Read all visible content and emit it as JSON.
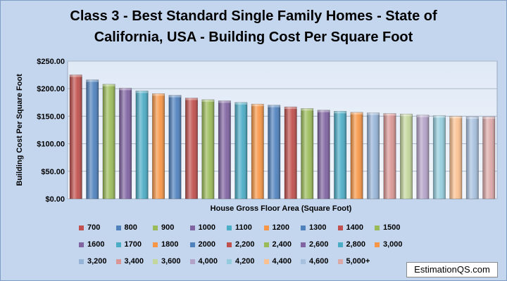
{
  "chart_data": {
    "type": "bar",
    "title_line1": "Class 3 - Best Standard Single Family Homes  - State of",
    "title_line2": "California, USA  - Building Cost Per Square Foot",
    "xlabel": "House Gross Floor Area (Square Foot)",
    "ylabel": "Building Cost Per Square Foot",
    "ylim": [
      0,
      250
    ],
    "yticks": [
      "$0.00",
      "$50.00",
      "$100.00",
      "$150.00",
      "$200.00",
      "$250.00"
    ],
    "ytick_values": [
      0,
      50,
      100,
      150,
      200,
      250
    ],
    "grid": true,
    "legend_position": "bottom",
    "categories": [
      "700",
      "800",
      "900",
      "1000",
      "1100",
      "1200",
      "1300",
      "1400",
      "1500",
      "1600",
      "1700",
      "1800",
      "2000",
      "2,200",
      "2,400",
      "2,600",
      "2,800",
      "3,000",
      "3,200",
      "3,400",
      "3,600",
      "4,000",
      "4,200",
      "4,400",
      "4,600",
      "5,000+"
    ],
    "values": [
      225,
      216,
      208,
      201,
      196,
      191,
      188,
      183,
      180,
      178,
      175,
      172,
      170,
      167,
      164,
      161,
      159,
      157,
      156,
      155,
      154,
      152,
      151,
      150,
      149,
      149
    ],
    "colors": [
      "#c0504d",
      "#4f81bd",
      "#9bbb59",
      "#8064a2",
      "#4bacc6",
      "#f79646",
      "#4f81bd",
      "#c0504d",
      "#9bbb59",
      "#8064a2",
      "#4bacc6",
      "#f79646",
      "#4f81bd",
      "#c0504d",
      "#9bbb59",
      "#8064a2",
      "#4bacc6",
      "#f79646",
      "#95b3d7",
      "#d99694",
      "#c3d69b",
      "#b3a2c7",
      "#93cddd",
      "#fac08f",
      "#a7c0de",
      "#dca8a8"
    ]
  },
  "watermark": "EstimationQS.com"
}
